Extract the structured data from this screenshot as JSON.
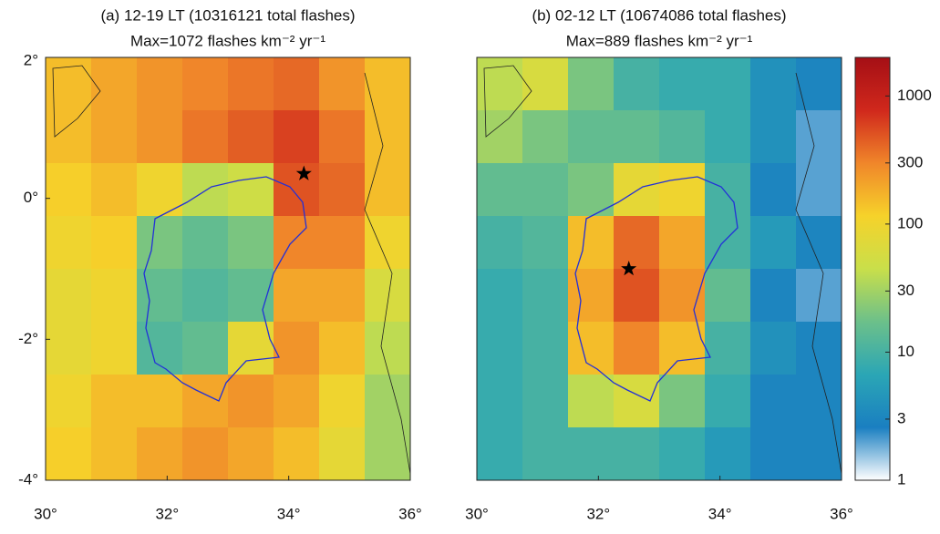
{
  "chart_data": [
    {
      "type": "heatmap",
      "title": "(a) 12-19 LT (10316121 total flashes)",
      "subtitle": "Max=1072 flashes km⁻² yr⁻¹",
      "x": [
        30.375,
        31.125,
        31.875,
        32.625,
        33.375,
        34.125,
        34.875,
        35.625
      ],
      "y": [
        1.625,
        0.875,
        0.125,
        -0.625,
        -1.375,
        -2.125,
        -2.875,
        -3.625
      ],
      "z": [
        [
          150,
          200,
          250,
          300,
          350,
          400,
          250,
          150
        ],
        [
          150,
          200,
          250,
          350,
          450,
          600,
          350,
          150
        ],
        [
          120,
          150,
          100,
          40,
          50,
          500,
          400,
          150
        ],
        [
          100,
          120,
          20,
          15,
          20,
          300,
          300,
          100
        ],
        [
          80,
          100,
          15,
          12,
          15,
          200,
          200,
          60
        ],
        [
          80,
          100,
          12,
          15,
          80,
          250,
          150,
          40
        ],
        [
          100,
          150,
          150,
          200,
          250,
          200,
          100,
          30
        ],
        [
          120,
          150,
          200,
          250,
          200,
          150,
          80,
          30
        ]
      ],
      "xlim": [
        30,
        36
      ],
      "ylim": [
        -4,
        2
      ],
      "xticks": [
        {
          "value": 30,
          "label": "30°"
        },
        {
          "value": 32,
          "label": "32°"
        },
        {
          "value": 34,
          "label": "34°"
        },
        {
          "value": 36,
          "label": "36°"
        }
      ],
      "yticks": [
        {
          "value": 2,
          "label": "2°"
        },
        {
          "value": 0,
          "label": "0°"
        },
        {
          "value": -2,
          "label": "-2°"
        },
        {
          "value": -4,
          "label": "-4°"
        }
      ],
      "marker": {
        "x": 34.25,
        "y": 0.35
      }
    },
    {
      "type": "heatmap",
      "title": "(b) 02-12 LT (10674086 total flashes)",
      "subtitle": "Max=889 flashes km⁻² yr⁻¹",
      "x": [
        30.375,
        31.125,
        31.875,
        32.625,
        33.375,
        34.125,
        34.875,
        35.625
      ],
      "y": [
        1.625,
        0.875,
        0.125,
        -0.625,
        -1.375,
        -2.125,
        -2.875,
        -3.625
      ],
      "z": [
        [
          40,
          60,
          20,
          10,
          8,
          8,
          4,
          3
        ],
        [
          30,
          20,
          15,
          15,
          12,
          8,
          4,
          2
        ],
        [
          15,
          15,
          20,
          80,
          100,
          10,
          3,
          2
        ],
        [
          10,
          12,
          150,
          400,
          200,
          10,
          5,
          3
        ],
        [
          8,
          10,
          200,
          500,
          250,
          15,
          3,
          2
        ],
        [
          8,
          10,
          150,
          300,
          150,
          10,
          4,
          3
        ],
        [
          8,
          10,
          40,
          60,
          20,
          8,
          3,
          3
        ],
        [
          8,
          10,
          10,
          10,
          8,
          5,
          3,
          3
        ]
      ],
      "xlim": [
        30,
        36
      ],
      "ylim": [
        -4,
        2
      ],
      "xticks": [
        {
          "value": 30,
          "label": "30°"
        },
        {
          "value": 32,
          "label": "32°"
        },
        {
          "value": 34,
          "label": "34°"
        },
        {
          "value": 36,
          "label": "36°"
        }
      ],
      "marker": {
        "x": 32.5,
        "y": -1.0
      },
      "colorbar": {
        "log": true,
        "lim": [
          1,
          2000
        ],
        "ticks": [
          1,
          3,
          10,
          30,
          100,
          300,
          1000
        ],
        "colors": [
          "#ffffff",
          "#1a7fc1",
          "#2ba6b5",
          "#6cc08a",
          "#c9df4a",
          "#f6d22a",
          "#f0862a",
          "#d0281c",
          "#a50f15"
        ]
      }
    }
  ]
}
